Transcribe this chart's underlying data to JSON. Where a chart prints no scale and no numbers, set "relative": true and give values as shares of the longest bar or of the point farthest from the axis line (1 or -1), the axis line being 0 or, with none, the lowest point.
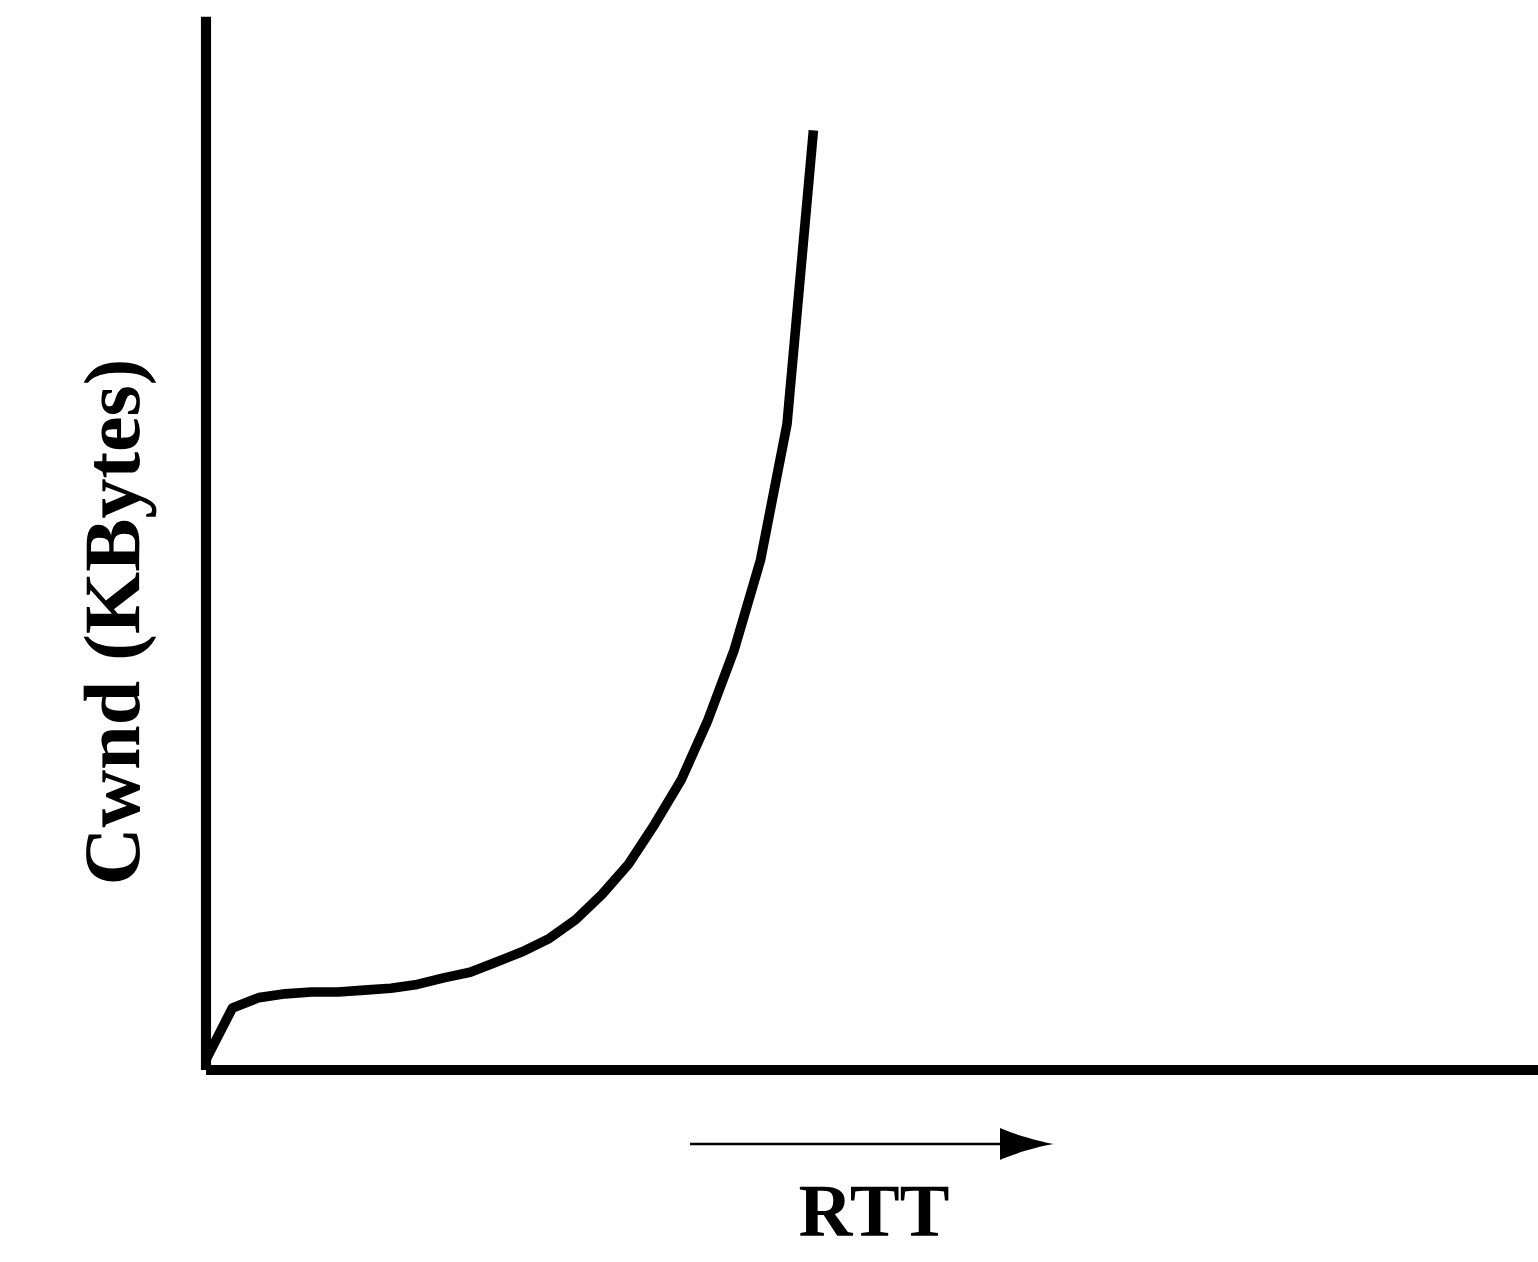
{
  "chart_data": {
    "type": "line",
    "relative": true,
    "xlabel": "RTT",
    "ylabel": "Cwnd (KBytes)",
    "categories": [
      null,
      null,
      null,
      null,
      null,
      null,
      null,
      null,
      null,
      null,
      null,
      null,
      null,
      null,
      null,
      null,
      null,
      null,
      null,
      null,
      null,
      null,
      null,
      null
    ],
    "series": [
      {
        "color": "#000000",
        "values": [
          0.011,
          0.066,
          0.077,
          0.081,
          0.083,
          0.083,
          0.085,
          0.087,
          0.091,
          0.098,
          0.104,
          0.115,
          0.126,
          0.14,
          0.16,
          0.187,
          0.219,
          0.262,
          0.309,
          0.372,
          0.447,
          0.543,
          0.687,
          1.0
        ]
      }
    ],
    "marker": "none",
    "line_style": "solid"
  }
}
